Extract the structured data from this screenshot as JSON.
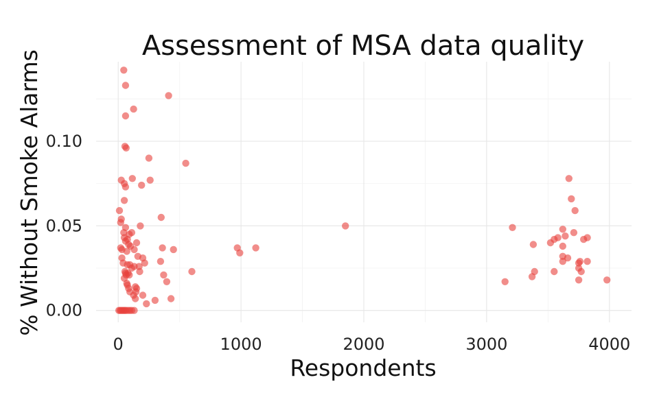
{
  "chart_data": {
    "type": "scatter",
    "title": "Assessment of MSA data quality",
    "xlabel": "Respondents",
    "ylabel": "% Without Smoke Alarms",
    "xlim": [
      -180,
      4180
    ],
    "ylim": [
      -0.007,
      0.147
    ],
    "x_ticks": [
      0,
      1000,
      2000,
      3000,
      4000
    ],
    "x_tick_labels": [
      "0",
      "1000",
      "2000",
      "3000",
      "4000"
    ],
    "y_ticks": [
      0.0,
      0.05,
      0.1
    ],
    "y_tick_labels": [
      "0.00",
      "0.05",
      "0.10"
    ],
    "grid": true,
    "point_color": "#e8413c",
    "points": [
      [
        45,
        0.142
      ],
      [
        60,
        0.133
      ],
      [
        410,
        0.127
      ],
      [
        125,
        0.119
      ],
      [
        60,
        0.115
      ],
      [
        55,
        0.097
      ],
      [
        65,
        0.096
      ],
      [
        250,
        0.09
      ],
      [
        550,
        0.087
      ],
      [
        25,
        0.077
      ],
      [
        50,
        0.075
      ],
      [
        60,
        0.073
      ],
      [
        115,
        0.078
      ],
      [
        260,
        0.077
      ],
      [
        190,
        0.074
      ],
      [
        50,
        0.065
      ],
      [
        10,
        0.059
      ],
      [
        25,
        0.054
      ],
      [
        20,
        0.052
      ],
      [
        60,
        0.049
      ],
      [
        350,
        0.055
      ],
      [
        180,
        0.05
      ],
      [
        90,
        0.045
      ],
      [
        110,
        0.046
      ],
      [
        45,
        0.046
      ],
      [
        50,
        0.043
      ],
      [
        60,
        0.041
      ],
      [
        75,
        0.042
      ],
      [
        150,
        0.04
      ],
      [
        85,
        0.039
      ],
      [
        100,
        0.038
      ],
      [
        20,
        0.037
      ],
      [
        30,
        0.036
      ],
      [
        130,
        0.036
      ],
      [
        70,
        0.035
      ],
      [
        360,
        0.037
      ],
      [
        450,
        0.036
      ],
      [
        970,
        0.037
      ],
      [
        990,
        0.034
      ],
      [
        1120,
        0.037
      ],
      [
        1850,
        0.05
      ],
      [
        30,
        0.031
      ],
      [
        160,
        0.032
      ],
      [
        200,
        0.031
      ],
      [
        40,
        0.028
      ],
      [
        75,
        0.027
      ],
      [
        95,
        0.027
      ],
      [
        110,
        0.025
      ],
      [
        130,
        0.026
      ],
      [
        170,
        0.026
      ],
      [
        215,
        0.028
      ],
      [
        345,
        0.029
      ],
      [
        600,
        0.023
      ],
      [
        55,
        0.023
      ],
      [
        60,
        0.022
      ],
      [
        65,
        0.021
      ],
      [
        80,
        0.022
      ],
      [
        90,
        0.021
      ],
      [
        175,
        0.023
      ],
      [
        370,
        0.021
      ],
      [
        395,
        0.017
      ],
      [
        50,
        0.019
      ],
      [
        70,
        0.016
      ],
      [
        75,
        0.015
      ],
      [
        85,
        0.013
      ],
      [
        95,
        0.011
      ],
      [
        140,
        0.014
      ],
      [
        150,
        0.013
      ],
      [
        145,
        0.011
      ],
      [
        125,
        0.009
      ],
      [
        140,
        0.007
      ],
      [
        200,
        0.009
      ],
      [
        300,
        0.006
      ],
      [
        430,
        0.007
      ],
      [
        230,
        0.004
      ],
      [
        5,
        0.0
      ],
      [
        15,
        0.0
      ],
      [
        25,
        0.0
      ],
      [
        35,
        0.0
      ],
      [
        45,
        0.0
      ],
      [
        55,
        0.0
      ],
      [
        65,
        0.0
      ],
      [
        80,
        0.0
      ],
      [
        95,
        0.0
      ],
      [
        110,
        0.0
      ],
      [
        130,
        0.0
      ],
      [
        3210,
        0.049
      ],
      [
        3670,
        0.078
      ],
      [
        3690,
        0.066
      ],
      [
        3720,
        0.059
      ],
      [
        3620,
        0.048
      ],
      [
        3710,
        0.046
      ],
      [
        3640,
        0.044
      ],
      [
        3580,
        0.043
      ],
      [
        3550,
        0.042
      ],
      [
        3520,
        0.04
      ],
      [
        3790,
        0.042
      ],
      [
        3820,
        0.043
      ],
      [
        3380,
        0.039
      ],
      [
        3620,
        0.038
      ],
      [
        3620,
        0.032
      ],
      [
        3660,
        0.031
      ],
      [
        3750,
        0.028
      ],
      [
        3760,
        0.029
      ],
      [
        3820,
        0.029
      ],
      [
        3620,
        0.029
      ],
      [
        3750,
        0.025
      ],
      [
        3770,
        0.023
      ],
      [
        3390,
        0.023
      ],
      [
        3550,
        0.023
      ],
      [
        3370,
        0.02
      ],
      [
        3150,
        0.017
      ],
      [
        3750,
        0.018
      ],
      [
        3980,
        0.018
      ]
    ]
  }
}
